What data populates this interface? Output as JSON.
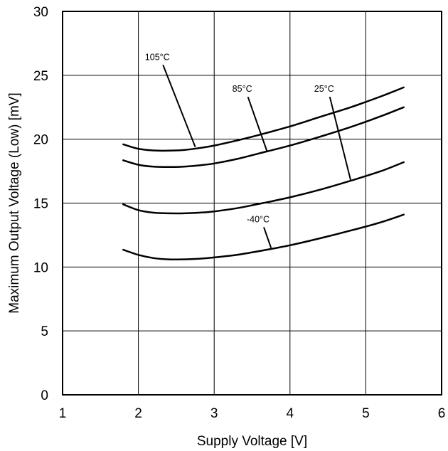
{
  "chart_data": {
    "type": "line",
    "title": "",
    "xlabel": "Supply Voltage [V]",
    "ylabel": "Maximum Output Voltage (Low) [mV]",
    "xlim": [
      1,
      6
    ],
    "ylim": [
      0,
      30
    ],
    "xticks": [
      "1",
      "2",
      "3",
      "4",
      "5",
      "6"
    ],
    "yticks": [
      "0",
      "5",
      "10",
      "15",
      "20",
      "25",
      "30"
    ],
    "grid": true,
    "legend": "none",
    "series": [
      {
        "name": "105°C",
        "x": [
          1.8,
          2.0,
          2.2,
          2.4,
          2.6,
          2.8,
          3.0,
          3.3,
          3.6,
          4.0,
          4.4,
          4.8,
          5.2,
          5.5
        ],
        "y": [
          19.6,
          19.25,
          19.12,
          19.1,
          19.15,
          19.3,
          19.5,
          19.9,
          20.35,
          21.0,
          21.75,
          22.5,
          23.35,
          24.05
        ]
      },
      {
        "name": "85°C",
        "x": [
          1.8,
          2.0,
          2.2,
          2.4,
          2.6,
          2.8,
          3.0,
          3.3,
          3.6,
          4.0,
          4.4,
          4.8,
          5.2,
          5.5
        ],
        "y": [
          18.35,
          18.0,
          17.85,
          17.82,
          17.85,
          17.95,
          18.1,
          18.45,
          18.9,
          19.5,
          20.2,
          20.95,
          21.8,
          22.5
        ]
      },
      {
        "name": "25°C",
        "x": [
          1.8,
          2.0,
          2.2,
          2.4,
          2.6,
          2.8,
          3.0,
          3.3,
          3.6,
          4.0,
          4.4,
          4.8,
          5.2,
          5.5
        ],
        "y": [
          14.9,
          14.45,
          14.25,
          14.2,
          14.2,
          14.25,
          14.35,
          14.6,
          14.95,
          15.45,
          16.05,
          16.75,
          17.5,
          18.2
        ]
      },
      {
        "name": "-40°C",
        "x": [
          1.8,
          2.0,
          2.2,
          2.4,
          2.6,
          2.8,
          3.0,
          3.3,
          3.6,
          4.0,
          4.4,
          4.8,
          5.2,
          5.5
        ],
        "y": [
          11.35,
          10.95,
          10.7,
          10.6,
          10.6,
          10.65,
          10.75,
          10.95,
          11.25,
          11.7,
          12.25,
          12.85,
          13.5,
          14.1
        ]
      }
    ],
    "annotations": [
      {
        "text": "105°C",
        "series": "105°C",
        "label_x": 2.25,
        "label_y": 26.2,
        "point_x": 2.75,
        "point_y": 19.4
      },
      {
        "text": "85°C",
        "series": "85°C",
        "label_x": 3.37,
        "label_y": 23.7,
        "point_x": 3.7,
        "point_y": 19.0
      },
      {
        "text": "25°C",
        "series": "25°C",
        "label_x": 4.45,
        "label_y": 23.7,
        "point_x": 4.8,
        "point_y": 16.8
      },
      {
        "text": "-40°C",
        "series": "-40°C",
        "label_x": 3.58,
        "label_y": 13.5,
        "point_x": 3.75,
        "point_y": 11.5
      }
    ]
  }
}
